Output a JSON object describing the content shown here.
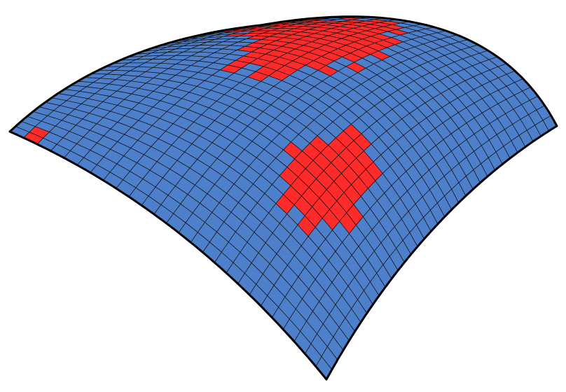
{
  "figure": {
    "kind": "3d parametric surface rendering (saddle / doubly-curved shell)",
    "background": "#ffffff",
    "colors": {
      "blue_panel": "#4d7fca",
      "red_panel": "#ff2a2a",
      "panel_lines": "#111111",
      "outline": "#000000"
    },
    "mesh": {
      "u_divisions": 26,
      "v_divisions": 34
    },
    "pattern_seed": 7
  }
}
